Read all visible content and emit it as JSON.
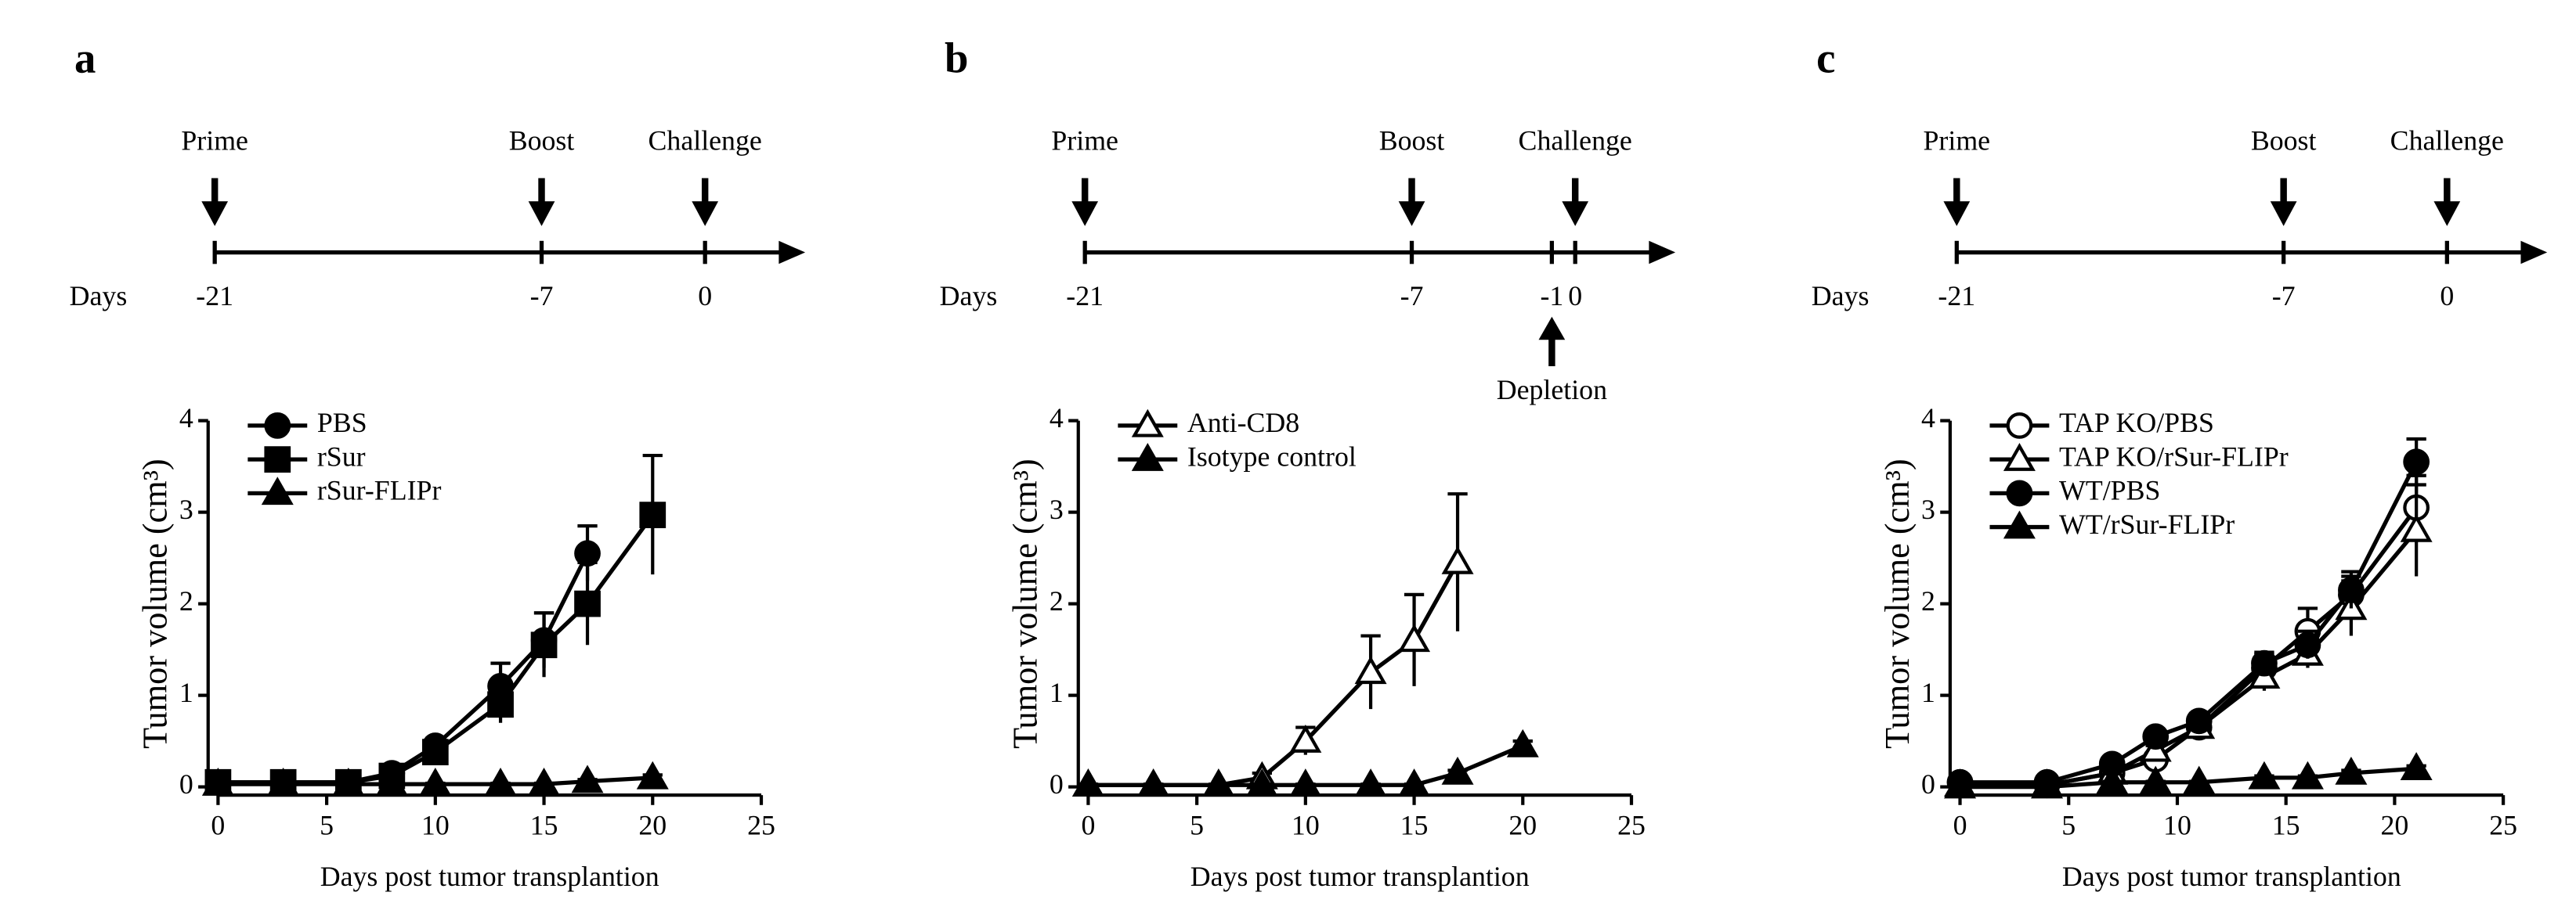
{
  "chart_data": [
    {
      "type": "line",
      "panel": "a",
      "timeline": {
        "label": "Days",
        "ticks": [
          -21,
          -7,
          0
        ],
        "events": [
          {
            "label": "Prime",
            "day": -21,
            "direction": "down"
          },
          {
            "label": "Boost",
            "day": -7,
            "direction": "down"
          },
          {
            "label": "Challenge",
            "day": 0,
            "direction": "down"
          }
        ]
      },
      "x_label": "Days post tumor transplantion",
      "y_label": "Tumor volume (cm³)",
      "xlim": [
        0,
        25
      ],
      "xticks": [
        0,
        5,
        10,
        15,
        20,
        25
      ],
      "ylim": [
        0,
        4
      ],
      "yticks": [
        0,
        1,
        2,
        3,
        4
      ],
      "legend": "top-left",
      "x": [
        0,
        3,
        6,
        8,
        10,
        13,
        15,
        17,
        20
      ],
      "series": [
        {
          "name": "PBS",
          "color": "#000000",
          "marker": "circle",
          "filled": true,
          "values": [
            0.05,
            0.05,
            0.05,
            0.15,
            0.45,
            1.1,
            1.6,
            2.55,
            null
          ],
          "errors": [
            0.02,
            0.02,
            0.02,
            0.05,
            0.08,
            0.25,
            0.3,
            0.3,
            null
          ]
        },
        {
          "name": "rSur",
          "color": "#000000",
          "marker": "square",
          "filled": true,
          "values": [
            0.05,
            0.05,
            0.05,
            0.12,
            0.38,
            0.9,
            1.55,
            2.0,
            2.97
          ],
          "errors": [
            0.02,
            0.02,
            0.02,
            0.05,
            0.08,
            0.2,
            0.35,
            0.45,
            0.65
          ]
        },
        {
          "name": "rSur-FLIPr",
          "color": "#000000",
          "marker": "triangle",
          "filled": true,
          "values": [
            0.03,
            0.03,
            0.03,
            0.03,
            0.03,
            0.03,
            0.03,
            0.06,
            0.1
          ],
          "errors": [
            0.01,
            0.01,
            0.01,
            0.01,
            0.01,
            0.01,
            0.01,
            0.02,
            0.03
          ]
        }
      ]
    },
    {
      "type": "line",
      "panel": "b",
      "timeline": {
        "label": "Days",
        "ticks": [
          -21,
          -7,
          -1,
          0
        ],
        "events": [
          {
            "label": "Prime",
            "day": -21,
            "direction": "down"
          },
          {
            "label": "Boost",
            "day": -7,
            "direction": "down"
          },
          {
            "label": "Challenge",
            "day": 0,
            "direction": "down"
          },
          {
            "label": "Depletion",
            "day": -1,
            "direction": "up"
          }
        ]
      },
      "x_label": "Days post tumor transplantion",
      "y_label": "Tumor volume (cm³)",
      "xlim": [
        0,
        25
      ],
      "xticks": [
        0,
        5,
        10,
        15,
        20,
        25
      ],
      "ylim": [
        0,
        4
      ],
      "yticks": [
        0,
        1,
        2,
        3,
        4
      ],
      "legend": "top-left",
      "x": [
        0,
        3,
        6,
        8,
        10,
        13,
        15,
        17,
        20
      ],
      "series": [
        {
          "name": "Anti-CD8",
          "color": "#000000",
          "marker": "triangle",
          "filled": false,
          "values": [
            0.02,
            0.02,
            0.02,
            0.1,
            0.5,
            1.25,
            1.6,
            2.45,
            null
          ],
          "errors": [
            0.01,
            0.01,
            0.01,
            0.05,
            0.15,
            0.4,
            0.5,
            0.75,
            null
          ]
        },
        {
          "name": "Isotype control",
          "color": "#000000",
          "marker": "triangle",
          "filled": true,
          "values": [
            0.02,
            0.02,
            0.02,
            0.02,
            0.02,
            0.02,
            0.02,
            0.15,
            0.45
          ],
          "errors": [
            0.01,
            0.01,
            0.01,
            0.01,
            0.01,
            0.01,
            0.01,
            0.03,
            0.05
          ]
        }
      ]
    },
    {
      "type": "line",
      "panel": "c",
      "timeline": {
        "label": "Days",
        "ticks": [
          -21,
          -7,
          0
        ],
        "events": [
          {
            "label": "Prime",
            "day": -21,
            "direction": "down"
          },
          {
            "label": "Boost",
            "day": -7,
            "direction": "down"
          },
          {
            "label": "Challenge",
            "day": 0,
            "direction": "down"
          }
        ]
      },
      "x_label": "Days post tumor transplantion",
      "y_label": "Tumor volume (cm³)",
      "xlim": [
        0,
        25
      ],
      "xticks": [
        0,
        5,
        10,
        15,
        20,
        25
      ],
      "ylim": [
        0,
        4
      ],
      "yticks": [
        0,
        1,
        2,
        3,
        4
      ],
      "legend": "top-left",
      "x": [
        0,
        4,
        7,
        9,
        11,
        14,
        16,
        18,
        21
      ],
      "series": [
        {
          "name": "TAP KO/PBS",
          "color": "#000000",
          "marker": "circle",
          "filled": false,
          "values": [
            0.05,
            0.02,
            0.15,
            0.3,
            0.65,
            1.3,
            1.7,
            2.1,
            3.05
          ],
          "errors": [
            0.02,
            0.01,
            0.03,
            0.05,
            0.08,
            0.15,
            0.25,
            0.2,
            0.35
          ]
        },
        {
          "name": "TAP KO/rSur-FLIPr",
          "color": "#000000",
          "marker": "triangle",
          "filled": false,
          "values": [
            0.02,
            0.02,
            0.15,
            0.4,
            0.65,
            1.2,
            1.45,
            1.95,
            2.8
          ],
          "errors": [
            0.01,
            0.01,
            0.03,
            0.05,
            0.08,
            0.15,
            0.15,
            0.3,
            0.5
          ]
        },
        {
          "name": "WT/PBS",
          "color": "#000000",
          "marker": "circle",
          "filled": true,
          "values": [
            0.05,
            0.05,
            0.25,
            0.55,
            0.72,
            1.35,
            1.55,
            2.15,
            3.55
          ],
          "errors": [
            0.02,
            0.02,
            0.04,
            0.06,
            0.08,
            0.12,
            0.15,
            0.2,
            0.25
          ]
        },
        {
          "name": "WT/rSur-FLIPr",
          "color": "#000000",
          "marker": "triangle",
          "filled": true,
          "values": [
            0.0,
            0.0,
            0.05,
            0.05,
            0.05,
            0.1,
            0.1,
            0.15,
            0.2
          ],
          "errors": [
            0.01,
            0.01,
            0.01,
            0.01,
            0.01,
            0.02,
            0.02,
            0.03,
            0.03
          ]
        }
      ]
    }
  ]
}
